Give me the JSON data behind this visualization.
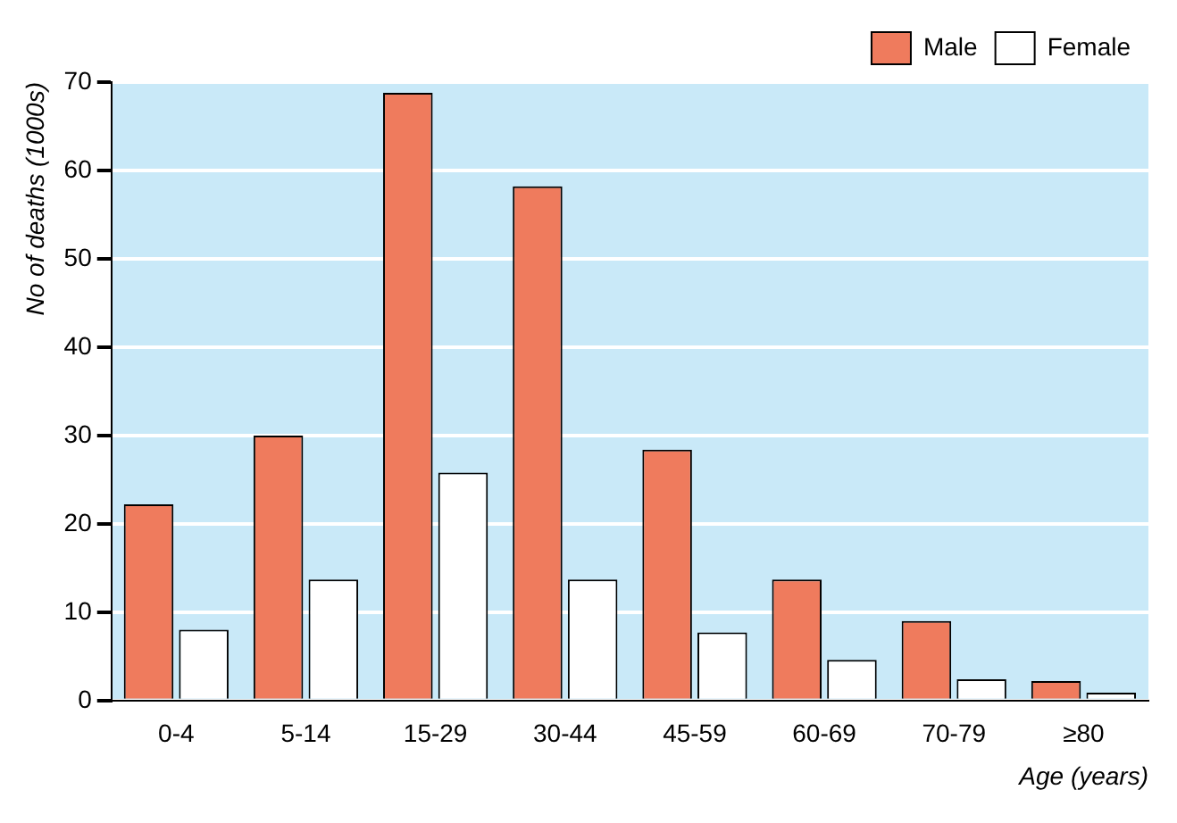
{
  "chart_data": {
    "type": "bar",
    "xlabel": "Age (years)",
    "ylabel": "No of deaths (1000s)",
    "categories": [
      "0-4",
      "5-14",
      "15-29",
      "30-44",
      "45-59",
      "60-69",
      "70-79",
      "≥80"
    ],
    "series": [
      {
        "name": "Male",
        "color": "#ef7b5d",
        "values": [
          22.2,
          30,
          68.8,
          58.2,
          28.4,
          13.7,
          9,
          2.2
        ]
      },
      {
        "name": "Female",
        "color": "#ffffff",
        "values": [
          8,
          13.7,
          25.8,
          13.7,
          7.7,
          4.6,
          2.4,
          0.9
        ]
      }
    ],
    "ylim": [
      0,
      70
    ],
    "yticks": [
      0,
      10,
      20,
      30,
      40,
      50,
      60,
      70
    ],
    "grid": "y",
    "legend": "top right"
  }
}
